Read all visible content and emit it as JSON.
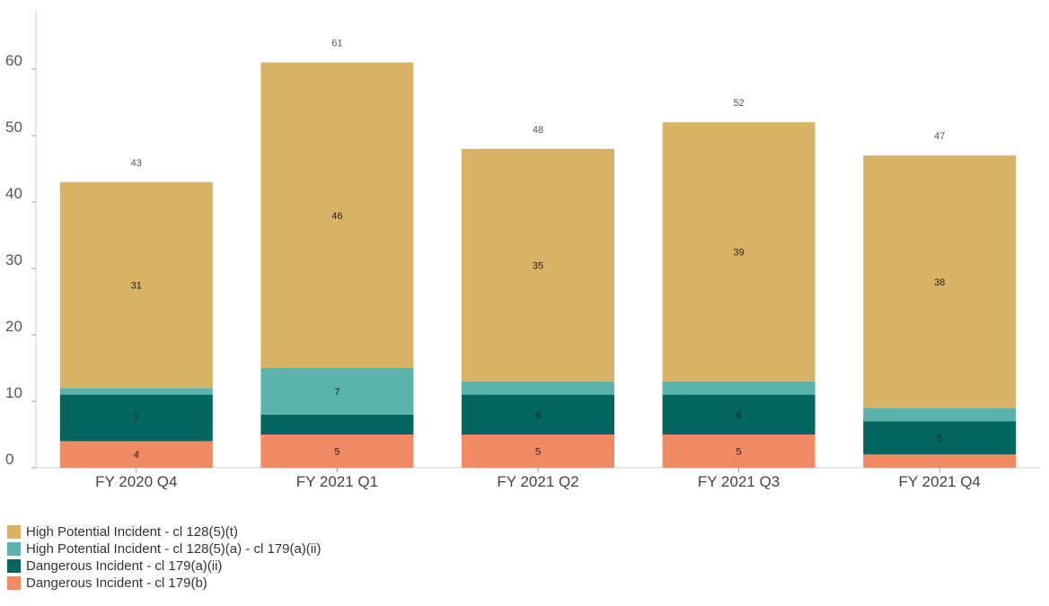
{
  "chart_data": {
    "type": "bar",
    "stacked": true,
    "categories": [
      "FY 2020 Q4",
      "FY 2021 Q1",
      "FY 2021 Q2",
      "FY 2021 Q3",
      "FY 2021 Q4"
    ],
    "ylim": [
      0,
      65
    ],
    "yticks": [
      0,
      10,
      20,
      30,
      40,
      50,
      60
    ],
    "totals": [
      43,
      61,
      48,
      52,
      47
    ],
    "series": [
      {
        "name": "Dangerous Incident - cl 179(b)",
        "color": "#ef8a62",
        "values": [
          4,
          5,
          5,
          5,
          2
        ],
        "labels": [
          "4",
          "5",
          "5",
          "5",
          ""
        ]
      },
      {
        "name": "Dangerous Incident - cl 179(a)(ii)",
        "color": "#01665e",
        "values": [
          7,
          3,
          6,
          6,
          5
        ],
        "labels": [
          "7",
          "",
          "6",
          "6",
          "5"
        ]
      },
      {
        "name": "High Potential Incident - cl 128(5)(a) - cl 179(a)(ii)",
        "color": "#5ab4ac",
        "values": [
          1,
          7,
          2,
          2,
          2
        ],
        "labels": [
          "",
          "7",
          "",
          "",
          ""
        ]
      },
      {
        "name": "High Potential Incident - cl 128(5)(t)",
        "color": "#d8b365",
        "values": [
          31,
          46,
          35,
          39,
          38
        ],
        "labels": [
          "31",
          "46",
          "35",
          "39",
          "38"
        ]
      }
    ],
    "legend_order": [
      3,
      2,
      1,
      0
    ],
    "legend_position": "bottom-left",
    "grid": false
  }
}
